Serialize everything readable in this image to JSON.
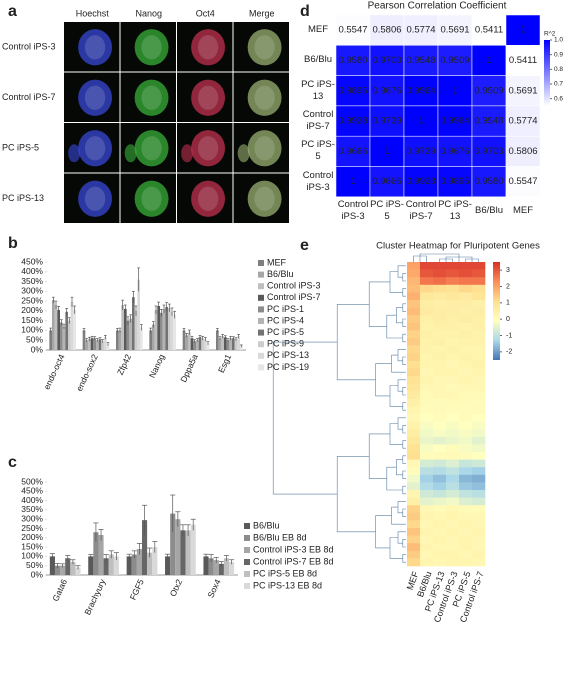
{
  "panel_labels": [
    "a",
    "b",
    "c",
    "d",
    "e"
  ],
  "panel_a": {
    "columns": [
      "Hoechst",
      "Nanog",
      "Oct4",
      "Merge"
    ],
    "rows": [
      "Control iPS-3",
      "Control iPS-7",
      "PC iPS-5",
      "PC iPS-13"
    ]
  },
  "chart_data": [
    {
      "type": "bar",
      "categories": [
        "endo-oct4",
        "endo-sox2",
        "Zfp42",
        "Nanog",
        "Dppa5a",
        "Esg1"
      ],
      "ylim": [
        0,
        450
      ],
      "yticks": [
        {
          "value": 0,
          "label": "0%"
        },
        {
          "value": 50,
          "label": "50%"
        },
        {
          "value": 100,
          "label": "100%"
        },
        {
          "value": 150,
          "label": "150%"
        },
        {
          "value": 200,
          "label": "200%"
        },
        {
          "value": 250,
          "label": "250%"
        },
        {
          "value": 300,
          "label": "300%"
        },
        {
          "value": 350,
          "label": "350%"
        },
        {
          "value": 400,
          "label": "400%"
        },
        {
          "value": 450,
          "label": "450%"
        }
      ],
      "series": [
        {
          "name": "MEF",
          "color": "#7f7f7f",
          "values": [
            100,
            100,
            100,
            100,
            100,
            100
          ],
          "errors": [
            12,
            10,
            10,
            12,
            10,
            10
          ]
        },
        {
          "name": "B6/Blu",
          "color": "#a6a6a6",
          "values": [
            255,
            50,
            100,
            130,
            75,
            60
          ],
          "errors": [
            15,
            8,
            12,
            15,
            10,
            8
          ]
        },
        {
          "name": "Control iPS-3",
          "color": "#bfbfbf",
          "values": [
            230,
            55,
            230,
            205,
            90,
            70
          ],
          "errors": [
            20,
            10,
            25,
            20,
            12,
            10
          ]
        },
        {
          "name": "Control iPS-7",
          "color": "#595959",
          "values": [
            205,
            60,
            210,
            225,
            60,
            65
          ],
          "errors": [
            18,
            10,
            20,
            20,
            10,
            8
          ]
        },
        {
          "name": "PC iPS-1",
          "color": "#8c8c8c",
          "values": [
            140,
            60,
            150,
            190,
            45,
            50
          ],
          "errors": [
            15,
            8,
            20,
            18,
            8,
            8
          ]
        },
        {
          "name": "PC iPS-4",
          "color": "#b3b3b3",
          "values": [
            120,
            50,
            160,
            210,
            50,
            60
          ],
          "errors": [
            12,
            8,
            20,
            20,
            8,
            10
          ]
        },
        {
          "name": "PC iPS-5",
          "color": "#737373",
          "values": [
            195,
            55,
            270,
            220,
            65,
            60
          ],
          "errors": [
            18,
            8,
            30,
            22,
            10,
            8
          ]
        },
        {
          "name": "PC iPS-9",
          "color": "#cccccc",
          "values": [
            150,
            45,
            200,
            215,
            60,
            55
          ],
          "errors": [
            15,
            8,
            25,
            20,
            10,
            8
          ]
        },
        {
          "name": "PC iPS-13",
          "color": "#d9d9d9",
          "values": [
            245,
            65,
            360,
            195,
            55,
            70
          ],
          "errors": [
            25,
            10,
            60,
            20,
            10,
            10
          ]
        },
        {
          "name": "PC iPS-19",
          "color": "#e6e6e6",
          "values": [
            205,
            30,
            115,
            180,
            35,
            20
          ],
          "errors": [
            20,
            8,
            15,
            18,
            8,
            6
          ]
        }
      ]
    },
    {
      "type": "bar",
      "categories": [
        "Gata6",
        "Brachyury",
        "FGF5",
        "Otx2",
        "Sox4"
      ],
      "ylim": [
        0,
        500
      ],
      "yticks": [
        {
          "value": 0,
          "label": "0%"
        },
        {
          "value": 50,
          "label": "50%"
        },
        {
          "value": 100,
          "label": "100%"
        },
        {
          "value": 150,
          "label": "150%"
        },
        {
          "value": 200,
          "label": "200%"
        },
        {
          "value": 250,
          "label": "250%"
        },
        {
          "value": 300,
          "label": "300%"
        },
        {
          "value": 350,
          "label": "350%"
        },
        {
          "value": 400,
          "label": "400%"
        },
        {
          "value": 450,
          "label": "450%"
        },
        {
          "value": 500,
          "label": "500%"
        }
      ],
      "series": [
        {
          "name": "B6/Blu",
          "color": "#595959",
          "values": [
            100,
            100,
            100,
            100,
            100
          ],
          "errors": [
            15,
            10,
            12,
            12,
            12
          ]
        },
        {
          "name": "B6/Blu EB 8d",
          "color": "#8c8c8c",
          "values": [
            50,
            230,
            110,
            330,
            90
          ],
          "errors": [
            12,
            50,
            20,
            100,
            20
          ]
        },
        {
          "name": "Control iPS-3 EB 8d",
          "color": "#a6a6a6",
          "values": [
            50,
            215,
            140,
            300,
            80
          ],
          "errors": [
            10,
            30,
            30,
            40,
            15
          ]
        },
        {
          "name": "Control iPS-7 EB 8d",
          "color": "#666666",
          "values": [
            90,
            90,
            295,
            240,
            60
          ],
          "errors": [
            15,
            20,
            80,
            30,
            12
          ]
        },
        {
          "name": "PC iPS-5 EB 8d",
          "color": "#bfbfbf",
          "values": [
            70,
            110,
            120,
            240,
            90
          ],
          "errors": [
            12,
            20,
            25,
            30,
            15
          ]
        },
        {
          "name": "PC iPS-13 EB 8d",
          "color": "#d9d9d9",
          "values": [
            40,
            100,
            150,
            270,
            70
          ],
          "errors": [
            10,
            20,
            30,
            30,
            12
          ]
        }
      ]
    },
    {
      "type": "heatmap",
      "title": "Pearson Correlation Coefficient",
      "x_categories": [
        "Control iPS-3",
        "PC iPS-5",
        "Control iPS-7",
        "PC iPS-13",
        "B6/Blu",
        "MEF"
      ],
      "y_categories": [
        "MEF",
        "B6/Blu",
        "PC iPS-13",
        "Control iPS-7",
        "PC iPS-5",
        "Control iPS-3"
      ],
      "values": [
        [
          0.5547,
          0.5806,
          0.5774,
          0.5691,
          0.5411,
          1
        ],
        [
          0.958,
          0.9703,
          0.9548,
          0.9509,
          1,
          0.5411
        ],
        [
          0.9895,
          0.9676,
          0.9964,
          1,
          0.9509,
          0.5691
        ],
        [
          0.9928,
          0.9739,
          1,
          0.9964,
          0.9548,
          0.5774
        ],
        [
          0.9666,
          1,
          0.9739,
          0.9676,
          0.9703,
          0.5806
        ],
        [
          1,
          0.9666,
          0.9928,
          0.9895,
          0.958,
          0.5547
        ]
      ],
      "value_labels": [
        [
          "0.5547",
          "0.5806",
          "0.5774",
          "0.5691",
          "0.5411",
          "1"
        ],
        [
          "0.9580",
          "0.9703",
          "0.9548",
          "0.9509",
          "1",
          "0.5411"
        ],
        [
          "0.9895",
          "0.9676",
          "0.9964",
          "1",
          "0.9509",
          "0.5691"
        ],
        [
          "0.9928",
          "0.9739",
          "1",
          "0.9964",
          "0.9548",
          "0.5774"
        ],
        [
          "0.9666",
          "1",
          "0.9739",
          "0.9676",
          "0.9703",
          "0.5806"
        ],
        [
          "1",
          "0.9666",
          "0.9928",
          "0.9895",
          "0.9580",
          "0.5547"
        ]
      ],
      "clim": [
        0.55,
        1.0
      ],
      "colors": [
        "#ffffff",
        "#0000ff"
      ],
      "colorbar_label": "R^2",
      "cbticks": [
        {
          "value": 1.0,
          "label": "1.0"
        },
        0.9,
        0.8,
        0.7,
        0.6
      ]
    },
    {
      "type": "clustermap",
      "title": "Cluster Heatmap for Pluripotent Genes",
      "x_categories": [
        "MEF",
        "B6/Blu",
        "PC iPS-13",
        "Control iPS-3",
        "PC iPS-5",
        "Control iPS-7"
      ],
      "values": [
        [
          2.0,
          3.2,
          3.2,
          3.2,
          3.2,
          3.2
        ],
        [
          1.9,
          3.0,
          3.1,
          3.0,
          3.1,
          3.0
        ],
        [
          1.7,
          2.6,
          2.7,
          2.5,
          2.6,
          2.6
        ],
        [
          1.6,
          1.2,
          1.1,
          1.0,
          1.2,
          1.1
        ],
        [
          1.8,
          0.8,
          0.7,
          0.8,
          0.7,
          0.9
        ],
        [
          1.5,
          0.6,
          0.5,
          0.6,
          0.6,
          0.5
        ],
        [
          1.6,
          0.7,
          0.6,
          0.6,
          0.5,
          0.6
        ],
        [
          1.4,
          0.5,
          0.6,
          0.5,
          0.6,
          0.5
        ],
        [
          1.5,
          0.4,
          0.5,
          0.5,
          0.4,
          0.5
        ],
        [
          1.3,
          0.5,
          0.4,
          0.4,
          0.5,
          0.4
        ],
        [
          1.4,
          0.4,
          0.5,
          0.3,
          0.4,
          0.4
        ],
        [
          1.2,
          0.4,
          0.3,
          0.4,
          0.3,
          0.3
        ],
        [
          1.3,
          0.3,
          0.4,
          0.3,
          0.4,
          0.3
        ],
        [
          1.1,
          0.3,
          0.3,
          0.2,
          0.3,
          0.4
        ],
        [
          1.2,
          0.2,
          0.3,
          0.3,
          0.2,
          0.3
        ],
        [
          1.0,
          0.3,
          0.2,
          0.2,
          0.3,
          0.2
        ],
        [
          0.9,
          0.2,
          0.2,
          0.1,
          0.2,
          0.2
        ],
        [
          0.7,
          0.1,
          0.2,
          0.2,
          0.1,
          0.1
        ],
        [
          0.5,
          0.1,
          0.0,
          0.1,
          0.1,
          0.0
        ],
        [
          0.3,
          0.0,
          0.1,
          0.0,
          0.0,
          0.1
        ],
        [
          0.2,
          -0.1,
          0.0,
          -0.1,
          0.0,
          -0.1
        ],
        [
          0.4,
          -0.2,
          -0.1,
          -0.2,
          -0.1,
          -0.2
        ],
        [
          0.6,
          -0.3,
          -0.2,
          -0.3,
          -0.2,
          -0.3
        ],
        [
          0.8,
          -0.4,
          -0.5,
          -0.4,
          -0.3,
          -0.5
        ],
        [
          1.0,
          -0.2,
          -0.1,
          0.0,
          -0.2,
          -0.3
        ],
        [
          1.1,
          0.0,
          0.1,
          0.1,
          0.0,
          -0.1
        ],
        [
          0.2,
          -0.7,
          -0.8,
          -0.6,
          -0.9,
          -0.8
        ],
        [
          0.0,
          -1.1,
          -1.2,
          -1.0,
          -1.3,
          -1.4
        ],
        [
          -0.3,
          -1.4,
          -1.6,
          -1.3,
          -1.7,
          -1.8
        ],
        [
          -0.5,
          -1.2,
          -1.4,
          -1.1,
          -1.5,
          -1.6
        ],
        [
          0.3,
          -0.8,
          -0.9,
          -0.7,
          -1.0,
          -1.1
        ],
        [
          0.5,
          -0.5,
          -0.4,
          -0.3,
          -0.6,
          -0.7
        ],
        [
          1.3,
          0.2,
          0.1,
          0.2,
          0.1,
          0.1
        ],
        [
          1.4,
          0.3,
          0.2,
          0.3,
          0.2,
          0.2
        ],
        [
          1.2,
          0.2,
          0.3,
          0.2,
          0.3,
          0.2
        ],
        [
          1.5,
          0.3,
          0.2,
          0.3,
          0.2,
          0.3
        ],
        [
          1.3,
          0.2,
          0.3,
          0.2,
          0.3,
          0.2
        ],
        [
          1.6,
          0.3,
          0.2,
          0.2,
          0.3,
          0.2
        ],
        [
          1.4,
          0.2,
          0.3,
          0.3,
          0.2,
          0.3
        ],
        [
          1.2,
          0.3,
          0.2,
          0.3,
          0.3,
          0.2
        ]
      ],
      "clim": [
        -2.5,
        3.5
      ],
      "colors": [
        "#4575b4",
        "#abd9e9",
        "#ffffbf",
        "#fee090",
        "#fc8d59",
        "#d73027"
      ],
      "cbticks": [
        3,
        2,
        1,
        0,
        -1,
        -2
      ]
    }
  ]
}
